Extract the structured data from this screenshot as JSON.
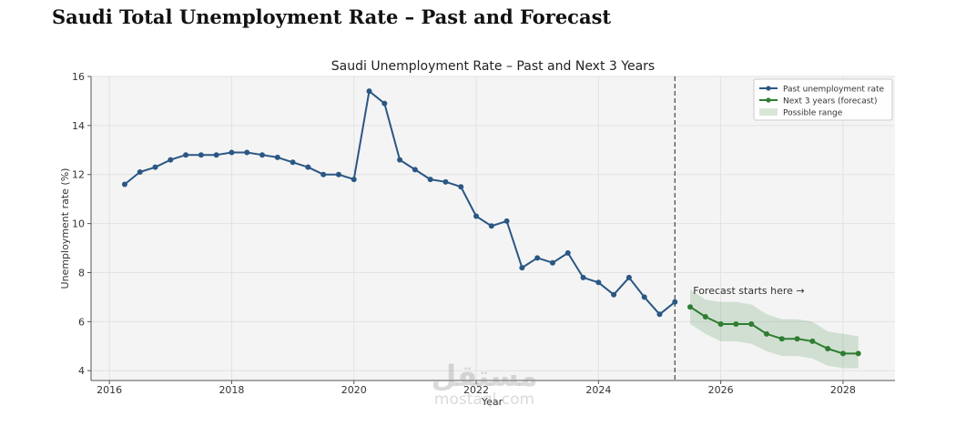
{
  "page": {
    "title": "Saudi Total Unemployment Rate – Past and Forecast",
    "watermark_logo": "مستقل",
    "watermark_text": "mostaql.com"
  },
  "chart_data": {
    "type": "line",
    "title": "Saudi Unemployment Rate – Past and Next 3 Years",
    "xlabel": "Year",
    "ylabel": "Unemployment rate (%)",
    "xlim": [
      2015.7,
      2028.85
    ],
    "ylim": [
      3.6,
      16
    ],
    "x_ticks": [
      2016,
      2018,
      2020,
      2022,
      2024,
      2026,
      2028
    ],
    "y_ticks": [
      4,
      6,
      8,
      10,
      12,
      14,
      16
    ],
    "grid": true,
    "legend_position": "top-right",
    "forecast_start_x": 2025.25,
    "annotation": "Forecast starts here →",
    "series": [
      {
        "name": "Past unemployment rate",
        "color": "#2a5783",
        "x": [
          2016.25,
          2016.5,
          2016.75,
          2017.0,
          2017.25,
          2017.5,
          2017.75,
          2018.0,
          2018.25,
          2018.5,
          2018.75,
          2019.0,
          2019.25,
          2019.5,
          2019.75,
          2020.0,
          2020.25,
          2020.5,
          2020.75,
          2021.0,
          2021.25,
          2021.5,
          2021.75,
          2022.0,
          2022.25,
          2022.5,
          2022.75,
          2023.0,
          2023.25,
          2023.5,
          2023.75,
          2024.0,
          2024.25,
          2024.5,
          2024.75,
          2025.0,
          2025.25
        ],
        "y": [
          11.6,
          12.1,
          12.3,
          12.6,
          12.8,
          12.8,
          12.8,
          12.9,
          12.9,
          12.8,
          12.7,
          12.5,
          12.3,
          12.0,
          12.0,
          11.8,
          15.4,
          14.9,
          12.6,
          12.2,
          11.8,
          11.7,
          11.5,
          10.3,
          9.9,
          10.1,
          8.2,
          8.6,
          8.4,
          8.8,
          7.8,
          7.6,
          7.1,
          7.8,
          7.0,
          6.3,
          6.8
        ]
      },
      {
        "name": "Next 3 years (forecast)",
        "color": "#2e7d32",
        "x": [
          2025.5,
          2025.75,
          2026.0,
          2026.25,
          2026.5,
          2026.75,
          2027.0,
          2027.25,
          2027.5,
          2027.75,
          2028.0,
          2028.25
        ],
        "y": [
          6.6,
          6.2,
          5.9,
          5.9,
          5.9,
          5.5,
          5.3,
          5.3,
          5.2,
          4.9,
          4.7,
          4.7
        ]
      }
    ],
    "range": {
      "name": "Possible range",
      "color": "#2e7d32",
      "x": [
        2025.5,
        2025.75,
        2026.0,
        2026.25,
        2026.5,
        2026.75,
        2027.0,
        2027.25,
        2027.5,
        2027.75,
        2028.0,
        2028.25
      ],
      "lower": [
        5.9,
        5.5,
        5.2,
        5.2,
        5.1,
        4.8,
        4.6,
        4.6,
        4.5,
        4.2,
        4.1,
        4.1
      ],
      "upper": [
        7.3,
        6.9,
        6.8,
        6.8,
        6.7,
        6.3,
        6.1,
        6.1,
        6.0,
        5.6,
        5.5,
        5.4
      ]
    }
  }
}
